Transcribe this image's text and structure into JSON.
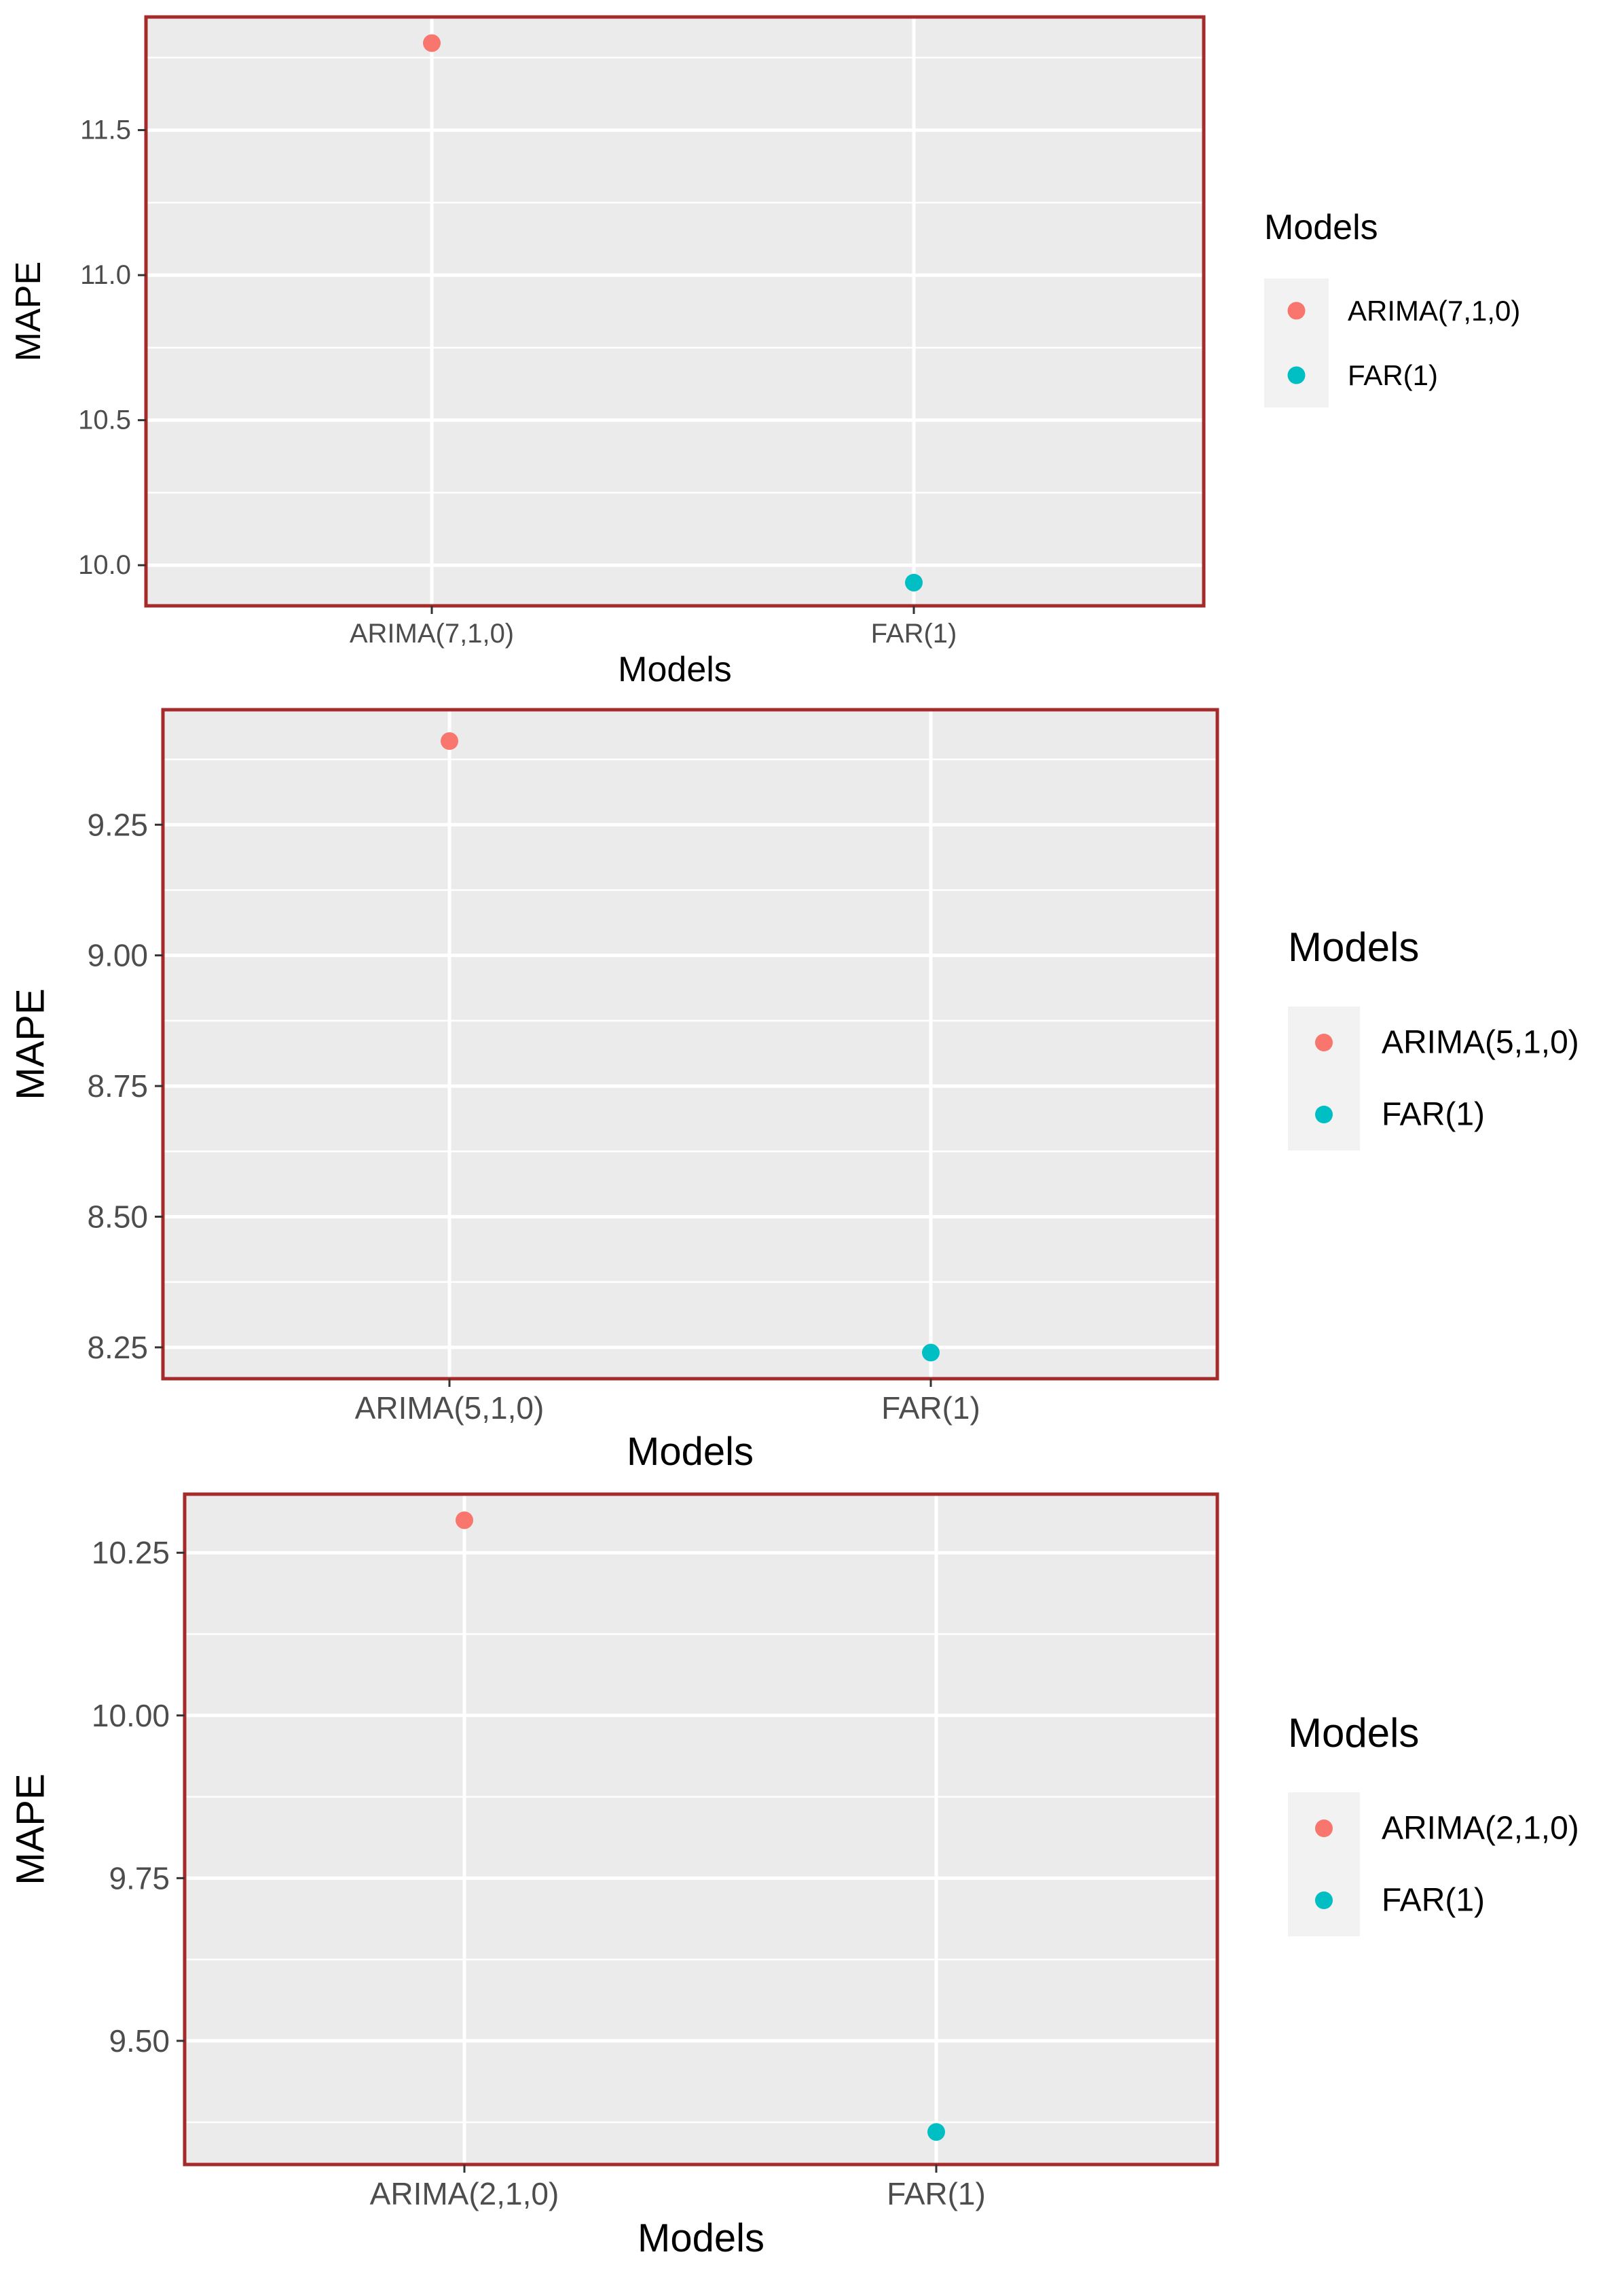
{
  "colors": {
    "panel_bg": "#EBEBEB",
    "grid": "#FFFFFF",
    "border": "#A52A2A",
    "tick_text": "#4D4D4D",
    "title_text": "#000000",
    "legend_key_bg": "#F2F2F2",
    "series_1": "#F8766D",
    "series_2": "#00BFC4"
  },
  "chart_data": [
    {
      "type": "scatter",
      "xlabel": "Models",
      "ylabel": "MAPE",
      "categories": [
        "ARIMA(7,1,0)",
        "FAR(1)"
      ],
      "series": [
        {
          "name": "ARIMA(7,1,0)",
          "category": "ARIMA(7,1,0)",
          "value": 11.8
        },
        {
          "name": "FAR(1)",
          "category": "FAR(1)",
          "value": 9.94
        }
      ],
      "ylim": [
        9.86,
        11.89
      ],
      "yticks": [
        10.0,
        10.5,
        11.0,
        11.5
      ],
      "ytick_labels": [
        "10.0",
        "10.5",
        "11.0",
        "11.5"
      ],
      "grid": true,
      "legend": {
        "title": "Models",
        "position": "right",
        "entries": [
          "ARIMA(7,1,0)",
          "FAR(1)"
        ]
      }
    },
    {
      "type": "scatter",
      "xlabel": "Models",
      "ylabel": "MAPE",
      "categories": [
        "ARIMA(5,1,0)",
        "FAR(1)"
      ],
      "series": [
        {
          "name": "ARIMA(5,1,0)",
          "category": "ARIMA(5,1,0)",
          "value": 9.41
        },
        {
          "name": "FAR(1)",
          "category": "FAR(1)",
          "value": 8.24
        }
      ],
      "ylim": [
        8.19,
        9.47
      ],
      "yticks": [
        8.25,
        8.5,
        8.75,
        9.0,
        9.25
      ],
      "ytick_labels": [
        "8.25",
        "8.50",
        "8.75",
        "9.00",
        "9.25"
      ],
      "grid": true,
      "legend": {
        "title": "Models",
        "position": "right",
        "entries": [
          "ARIMA(5,1,0)",
          "FAR(1)"
        ]
      }
    },
    {
      "type": "scatter",
      "xlabel": "Models",
      "ylabel": "MAPE",
      "categories": [
        "ARIMA(2,1,0)",
        "FAR(1)"
      ],
      "series": [
        {
          "name": "ARIMA(2,1,0)",
          "category": "ARIMA(2,1,0)",
          "value": 10.3
        },
        {
          "name": "FAR(1)",
          "category": "FAR(1)",
          "value": 9.36
        }
      ],
      "ylim": [
        9.31,
        10.34
      ],
      "yticks": [
        9.5,
        9.75,
        10.0,
        10.25
      ],
      "ytick_labels": [
        "9.50",
        "9.75",
        "10.00",
        "10.25"
      ],
      "grid": true,
      "legend": {
        "title": "Models",
        "position": "right",
        "entries": [
          "ARIMA(2,1,0)",
          "FAR(1)"
        ]
      }
    }
  ]
}
